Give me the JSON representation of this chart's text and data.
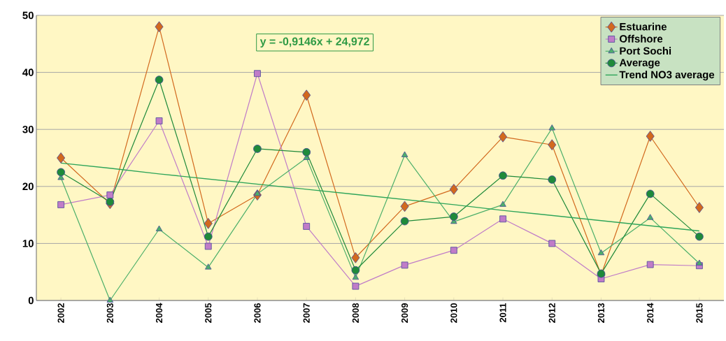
{
  "chart_data": {
    "type": "line",
    "categories": [
      "2002",
      "2003",
      "2004",
      "2005",
      "2006",
      "2007",
      "2008",
      "2009",
      "2010",
      "2011",
      "2012",
      "2013",
      "2014",
      "2015"
    ],
    "series": [
      {
        "name": "Estuarine",
        "color": "#d2691e",
        "marker": "diamond",
        "values": [
          25,
          17,
          48,
          13.5,
          18.5,
          36,
          7.5,
          16.5,
          19.5,
          28.7,
          27.3,
          4.5,
          28.8,
          16.3
        ]
      },
      {
        "name": "Offshore",
        "color": "#c07cc8",
        "marker": "square",
        "values": [
          16.8,
          18.5,
          31.5,
          9.5,
          39.8,
          13,
          2.5,
          6.2,
          8.8,
          14.3,
          10,
          3.8,
          6.3,
          6.1
        ]
      },
      {
        "name": "Port Sochi",
        "color": "#4caf6a",
        "marker": "triangle",
        "values": [
          21.5,
          0,
          12.5,
          5.8,
          18.7,
          25,
          4,
          25.5,
          13.8,
          16.8,
          30.2,
          8.3,
          14.5,
          6.5
        ]
      },
      {
        "name": "Average",
        "color": "#1f8a3a",
        "marker": "circle",
        "values": [
          22.5,
          17.3,
          38.7,
          11.2,
          26.6,
          26,
          5.3,
          13.9,
          14.7,
          21.9,
          21.2,
          4.7,
          18.7,
          11.2
        ]
      },
      {
        "name": "Trend NO3 average",
        "color": "#2ea55a",
        "marker": "none",
        "values": [
          24.1,
          23.2,
          22.2,
          21.3,
          20.4,
          19.5,
          18.6,
          17.7,
          16.8,
          15.8,
          14.9,
          14.0,
          13.1,
          12.2
        ]
      }
    ],
    "ylim": [
      0,
      50
    ],
    "yticks": [
      0,
      10,
      20,
      30,
      40,
      50
    ],
    "grid": "y",
    "legend": "top right",
    "line_style": "solid",
    "annotations": [
      "y = -0,9146x + 24,972"
    ]
  }
}
